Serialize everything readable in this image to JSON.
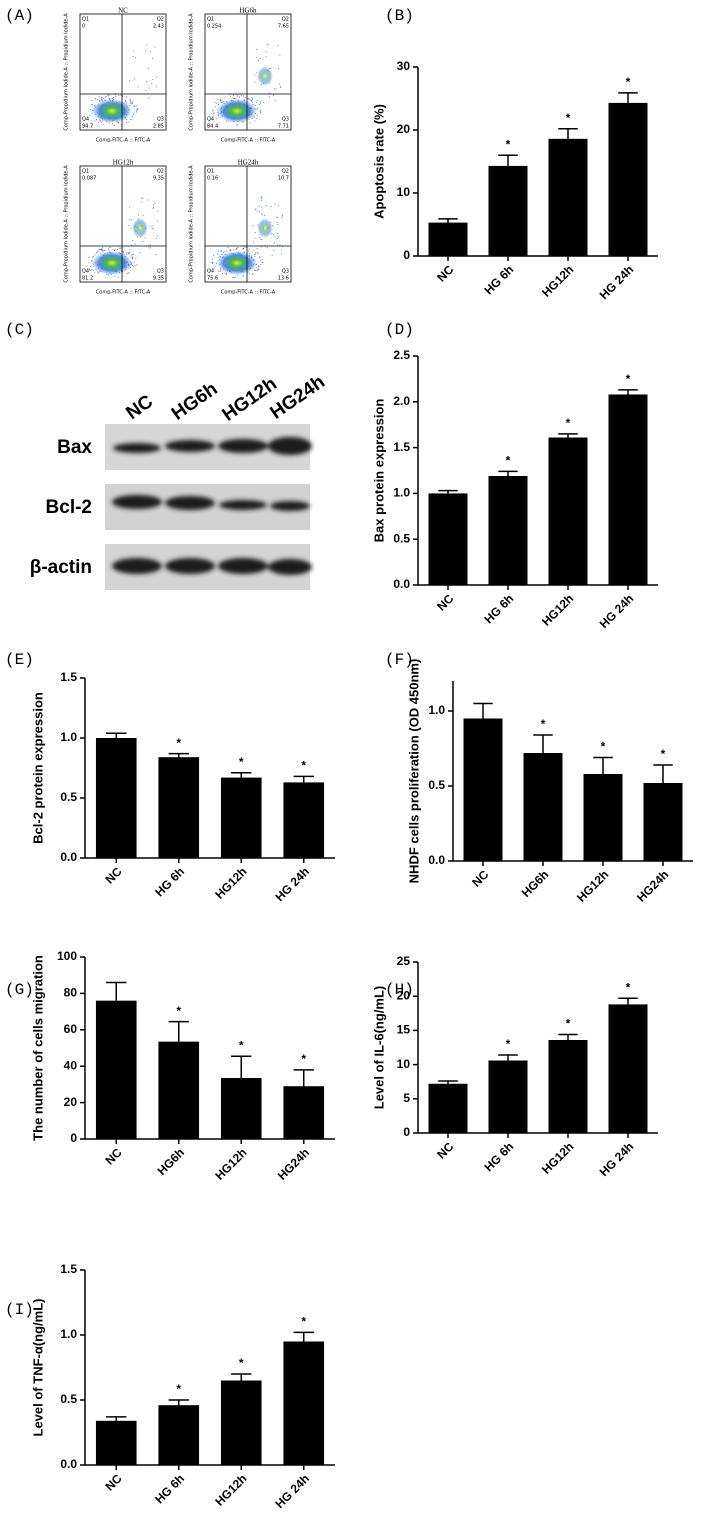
{
  "flow_cytometry": {
    "label": "(A)",
    "x_axis_label": "Comp-FITC-A :: FITC-A",
    "y_axis_label": "Comp-Propidium Iodide-A :: Propidium Iodide-A",
    "plots": [
      {
        "title": "NC",
        "quadrants": [
          {
            "name": "Q1",
            "value": 0
          },
          {
            "name": "Q2",
            "value": 2.43
          },
          {
            "name": "Q3",
            "value": 2.85
          },
          {
            "name": "Q4",
            "value": 94.7
          }
        ]
      },
      {
        "title": "HG6h",
        "quadrants": [
          {
            "name": "Q1",
            "value": 0.254
          },
          {
            "name": "Q2",
            "value": 7.65
          },
          {
            "name": "Q3",
            "value": 7.71
          },
          {
            "name": "Q4",
            "value": 84.4
          }
        ]
      },
      {
        "title": "HG12h",
        "quadrants": [
          {
            "name": "Q1",
            "value": 0.087
          },
          {
            "name": "Q2",
            "value": 9.35
          },
          {
            "name": "Q3",
            "value": 9.35
          },
          {
            "name": "Q4",
            "value": 81.2
          }
        ]
      },
      {
        "title": "HG24h",
        "quadrants": [
          {
            "name": "Q1",
            "value": 0.16
          },
          {
            "name": "Q2",
            "value": 10.7
          },
          {
            "name": "Q3",
            "value": 13.6
          },
          {
            "name": "Q4",
            "value": 75.6
          }
        ]
      }
    ]
  },
  "western_blot": {
    "label": "(C)",
    "lanes": [
      "NC",
      "HG6h",
      "HG12h",
      "HG24h"
    ],
    "rows": [
      "Bax",
      "Bcl-2",
      "β-actin"
    ]
  },
  "chart_data": [
    {
      "type": "bar",
      "label": "(B)",
      "y_label": "Apoptosis rate (%)",
      "categories": [
        "NC",
        "HG 6h",
        "HG12h",
        "HG 24h"
      ],
      "values": [
        5.3,
        14.3,
        18.6,
        24.3
      ],
      "errors": [
        0.6,
        1.7,
        1.6,
        1.6
      ],
      "annotations": [
        null,
        "*",
        "*",
        "*"
      ],
      "color": "#000000",
      "ylim": [
        0,
        30
      ],
      "yticks": [
        0,
        10,
        20,
        30
      ]
    },
    {
      "type": "bar",
      "label": "(D)",
      "y_label": "Bax protein expression",
      "categories": [
        "NC",
        "HG 6h",
        "HG12h",
        "HG 24h"
      ],
      "values": [
        1.0,
        1.19,
        1.61,
        2.08
      ],
      "errors": [
        0.03,
        0.05,
        0.04,
        0.05
      ],
      "annotations": [
        null,
        "*",
        "*",
        "*"
      ],
      "color": "#000000",
      "ylim": [
        0,
        2.5
      ],
      "yticks": [
        {
          "value": 0,
          "label": "0.0"
        },
        0.5,
        {
          "value": 1,
          "label": "1.0"
        },
        1.5,
        {
          "value": 2,
          "label": "2.0"
        },
        2.5
      ]
    },
    {
      "type": "bar",
      "label": "(E)",
      "y_label": "Bcl-2 protein expression",
      "categories": [
        "NC",
        "HG 6h",
        "HG12h",
        "HG 24h"
      ],
      "values": [
        1.0,
        0.84,
        0.67,
        0.63
      ],
      "errors": [
        0.04,
        0.03,
        0.04,
        0.05
      ],
      "annotations": [
        null,
        "*",
        "*",
        "*"
      ],
      "color": "#000000",
      "ylim": [
        0,
        1.5
      ],
      "yticks": [
        {
          "value": 0,
          "label": "0.0"
        },
        0.5,
        {
          "value": 1,
          "label": "1.0"
        },
        1.5
      ]
    },
    {
      "type": "bar",
      "label": "(F)",
      "y_label": "NHDF cells proliferation (OD 450nm)",
      "categories": [
        "NC",
        "HG6h",
        "HG12h",
        "HG24h"
      ],
      "values": [
        0.95,
        0.72,
        0.58,
        0.52
      ],
      "errors": [
        0.1,
        0.12,
        0.11,
        0.12
      ],
      "annotations": [
        null,
        "*",
        "*",
        "*"
      ],
      "color": "#000000",
      "ylim": [
        0,
        1.2
      ],
      "yticks": [
        {
          "value": 0,
          "label": "0.0"
        },
        0.5,
        {
          "value": 1,
          "label": "1.0"
        }
      ]
    },
    {
      "type": "bar",
      "label": "(G)",
      "y_label": "The number of cells migration",
      "categories": [
        "NC",
        "HG6h",
        "HG12h",
        "HG24h"
      ],
      "values": [
        76,
        53.5,
        33.5,
        29
      ],
      "errors": [
        10,
        11,
        12,
        9
      ],
      "annotations": [
        null,
        "*",
        "*",
        "*"
      ],
      "color": "#000000",
      "ylim": [
        0,
        100
      ],
      "yticks": [
        0,
        20,
        40,
        60,
        80,
        100
      ]
    },
    {
      "type": "bar",
      "label": "(H)",
      "y_label": "Level of IL-6(ng/mL)",
      "categories": [
        "NC",
        "HG 6h",
        "HG12h",
        "HG 24h"
      ],
      "values": [
        7.2,
        10.6,
        13.6,
        18.8
      ],
      "errors": [
        0.4,
        0.8,
        0.8,
        0.9
      ],
      "annotations": [
        null,
        "*",
        "*",
        "*"
      ],
      "color": "#000000",
      "ylim": [
        0,
        25
      ],
      "yticks": [
        0,
        5,
        10,
        15,
        20,
        25
      ]
    },
    {
      "type": "bar",
      "label": "(I)",
      "y_label": "Level of TNF-α(ng/mL)",
      "categories": [
        "NC",
        "HG 6h",
        "HG12h",
        "HG 24h"
      ],
      "values": [
        0.34,
        0.46,
        0.65,
        0.95
      ],
      "errors": [
        0.03,
        0.04,
        0.05,
        0.07
      ],
      "annotations": [
        null,
        "*",
        "*",
        "*"
      ],
      "color": "#000000",
      "ylim": [
        0,
        1.5
      ],
      "yticks": [
        {
          "value": 0,
          "label": "0.0"
        },
        0.5,
        {
          "value": 1,
          "label": "1.0"
        },
        1.5
      ]
    }
  ]
}
